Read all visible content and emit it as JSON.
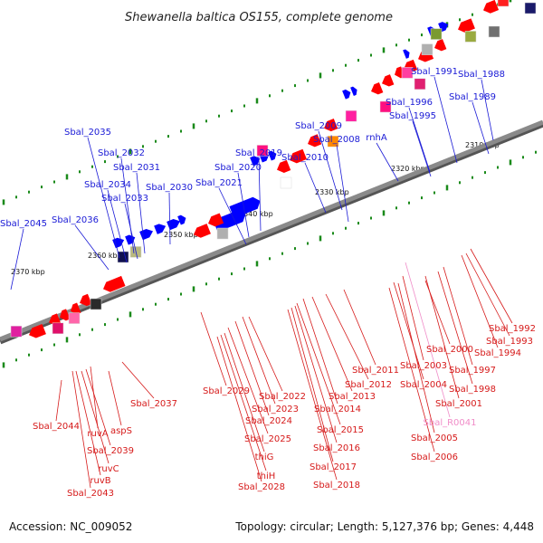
{
  "title": "Shewanella baltica OS155, complete genome",
  "footer": {
    "accession": "Accession: NC_009052",
    "summary": "Topology: circular; Length: 5,127,376 bp; Genes: 4,448"
  },
  "colors": {
    "top_labels": "#1a1ad6",
    "bottom_labels": "#d61a1a",
    "rna_label": "#f08cc8",
    "forward_genes": "#0000ff",
    "reverse_genes": "#ff0000",
    "backbone": "#8a8a8a",
    "tick": "#1a8a1a"
  },
  "scale_labels": [
    "2310 kbp",
    "2320 kbp",
    "2330 kbp",
    "2340 kbp",
    "2350 kbp",
    "2360 kbp",
    "2370 kbp"
  ],
  "top_labels": [
    "Sbal_1991",
    "Sbal_1988",
    "Sbal_1989",
    "Sbal_1996",
    "Sbal_1995",
    "Sbal_2009",
    "Sbal_2008",
    "rnhA",
    "Sbal_2035",
    "Sbal_2010",
    "Sbal_2019",
    "Sbal_2032",
    "Sbal_2031",
    "Sbal_2020",
    "Sbal_2034",
    "Sbal_2021",
    "Sbal_2030",
    "Sbal_2033",
    "Sbal_2045",
    "Sbal_2036"
  ],
  "bottom_labels": [
    "Sbal_1992",
    "Sbal_1993",
    "Sbal_1994",
    "Sbal_2000",
    "Sbal_1997",
    "Sbal_2011",
    "Sbal_2003",
    "Sbal_2012",
    "Sbal_2004",
    "Sbal_1998",
    "Sbal_2029",
    "Sbal_2022",
    "Sbal_2013",
    "Sbal_2037",
    "Sbal_2023",
    "Sbal_2001",
    "Sbal_2014",
    "Sbal_2024",
    "Sbal_R0041",
    "Sbal_2044",
    "aspS",
    "ruvA",
    "Sbal_2015",
    "Sbal_2039",
    "Sbal_2025",
    "Sbal_2005",
    "Sbal_2016",
    "thiG",
    "Sbal_2006",
    "ruvC",
    "Sbal_2017",
    "thiH",
    "ruvB",
    "Sbal_2018",
    "Sbal_2028",
    "Sbal_2043"
  ]
}
